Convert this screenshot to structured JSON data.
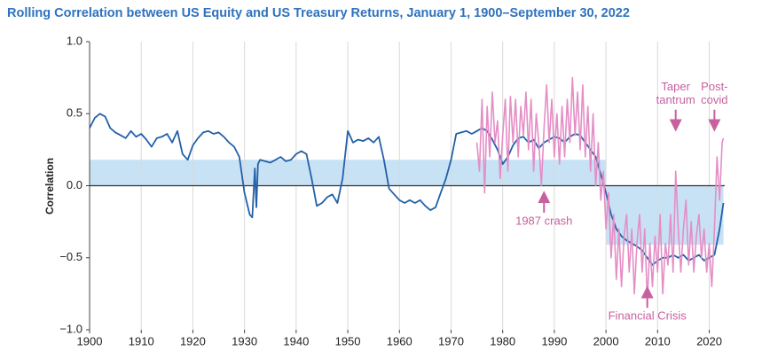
{
  "chart_data": {
    "type": "line",
    "title": "Rolling Correlation between US Equity and US Treasury Returns, January 1, 1900–September 30, 2022",
    "y_label": "Correlation",
    "xlim": [
      1900,
      2023
    ],
    "xticks": [
      1900,
      1910,
      1920,
      1930,
      1940,
      1950,
      1960,
      1970,
      1980,
      1990,
      2000,
      2010,
      2020
    ],
    "ylim": [
      -1,
      1
    ],
    "yticks": [
      {
        "value": -1,
        "label": "−1.0"
      },
      {
        "value": -0.5,
        "label": "−0.5"
      },
      {
        "value": 0,
        "label": "0.0"
      },
      {
        "value": 0.5,
        "label": "0.5"
      },
      {
        "value": 1,
        "label": "1.0"
      }
    ],
    "grid": "x",
    "band_color": "#c8e2f5",
    "bands": [
      {
        "x": [
          1900,
          2000
        ],
        "value": 0.18
      },
      {
        "x": [
          2000,
          2022.75
        ],
        "value": -0.41
      }
    ],
    "series": [
      {
        "color": "#2360a8",
        "x": [
          1900,
          1901,
          1902,
          1903,
          1904,
          1905,
          1906,
          1907,
          1908,
          1909,
          1910,
          1911,
          1912,
          1913,
          1914,
          1915,
          1916,
          1917,
          1918,
          1919,
          1920,
          1921,
          1922,
          1923,
          1924,
          1925,
          1926,
          1927,
          1928,
          1929,
          1930,
          1931,
          1931.5,
          1932,
          1932.3,
          1932.6,
          1933,
          1934,
          1935,
          1936,
          1937,
          1938,
          1939,
          1940,
          1941,
          1942,
          1943,
          1944,
          1945,
          1946,
          1947,
          1948,
          1949,
          1950,
          1951,
          1952,
          1953,
          1954,
          1955,
          1956,
          1957,
          1958,
          1959,
          1960,
          1961,
          1962,
          1963,
          1964,
          1965,
          1966,
          1967,
          1968,
          1969,
          1970,
          1971,
          1972,
          1973,
          1974,
          1975,
          1976,
          1977,
          1978,
          1979,
          1980,
          1981,
          1982,
          1983,
          1984,
          1985,
          1986,
          1987,
          1988,
          1989,
          1990,
          1991,
          1992,
          1993,
          1994,
          1995,
          1996,
          1997,
          1998,
          1999,
          2000,
          2001,
          2002,
          2003,
          2004,
          2005,
          2006,
          2007,
          2008,
          2009,
          2010,
          2011,
          2012,
          2013,
          2014,
          2015,
          2016,
          2017,
          2018,
          2019,
          2020,
          2021,
          2022,
          2022.75
        ],
        "values": [
          0.4,
          0.47,
          0.5,
          0.48,
          0.4,
          0.37,
          0.35,
          0.33,
          0.38,
          0.34,
          0.36,
          0.32,
          0.27,
          0.33,
          0.34,
          0.36,
          0.3,
          0.38,
          0.22,
          0.18,
          0.28,
          0.33,
          0.37,
          0.38,
          0.36,
          0.37,
          0.34,
          0.3,
          0.27,
          0.2,
          -0.05,
          -0.2,
          -0.22,
          0.12,
          -0.15,
          0.15,
          0.18,
          0.17,
          0.16,
          0.18,
          0.2,
          0.17,
          0.18,
          0.22,
          0.24,
          0.22,
          0.05,
          -0.14,
          -0.12,
          -0.08,
          -0.06,
          -0.12,
          0.05,
          0.38,
          0.3,
          0.32,
          0.31,
          0.33,
          0.3,
          0.34,
          0.18,
          -0.02,
          -0.06,
          -0.1,
          -0.12,
          -0.1,
          -0.12,
          -0.1,
          -0.14,
          -0.17,
          -0.15,
          -0.05,
          0.05,
          0.18,
          0.36,
          0.37,
          0.38,
          0.36,
          0.38,
          0.4,
          0.38,
          0.32,
          0.25,
          0.15,
          0.2,
          0.28,
          0.33,
          0.34,
          0.3,
          0.32,
          0.26,
          0.3,
          0.32,
          0.34,
          0.33,
          0.3,
          0.34,
          0.36,
          0.35,
          0.3,
          0.25,
          0.2,
          0.08,
          -0.05,
          -0.2,
          -0.3,
          -0.35,
          -0.38,
          -0.4,
          -0.42,
          -0.45,
          -0.5,
          -0.55,
          -0.52,
          -0.5,
          -0.5,
          -0.48,
          -0.5,
          -0.48,
          -0.52,
          -0.5,
          -0.48,
          -0.52,
          -0.5,
          -0.48,
          -0.3,
          -0.12
        ]
      },
      {
        "color": "#e48ec6",
        "x": [
          1975,
          1975.5,
          1976,
          1976.5,
          1977,
          1977.5,
          1978,
          1978.5,
          1979,
          1979.5,
          1980,
          1980.5,
          1981,
          1981.5,
          1982,
          1982.5,
          1983,
          1983.5,
          1984,
          1984.5,
          1985,
          1985.5,
          1986,
          1986.5,
          1987,
          1987.5,
          1988,
          1988.5,
          1989,
          1989.5,
          1990,
          1990.5,
          1991,
          1991.5,
          1992,
          1992.5,
          1993,
          1993.5,
          1994,
          1994.5,
          1995,
          1995.5,
          1996,
          1996.5,
          1997,
          1997.5,
          1998,
          1998.5,
          1999,
          1999.5,
          2000,
          2000.5,
          2001,
          2001.5,
          2002,
          2002.5,
          2003,
          2003.5,
          2004,
          2004.5,
          2005,
          2005.5,
          2006,
          2006.5,
          2007,
          2007.5,
          2008,
          2008.5,
          2009,
          2009.5,
          2010,
          2010.5,
          2011,
          2011.5,
          2012,
          2012.5,
          2013,
          2013.5,
          2014,
          2014.5,
          2015,
          2015.5,
          2016,
          2016.5,
          2017,
          2017.5,
          2018,
          2018.5,
          2019,
          2019.5,
          2020,
          2020.5,
          2021,
          2021.5,
          2022,
          2022.5,
          2022.75
        ],
        "values": [
          0.3,
          0.1,
          0.6,
          -0.05,
          0.55,
          0.2,
          0.65,
          0.3,
          0.45,
          0.05,
          0.35,
          0.6,
          0.1,
          0.62,
          0.3,
          0.6,
          0.2,
          0.55,
          0.35,
          0.65,
          0.25,
          0.6,
          0.1,
          0.5,
          0.3,
          0.0,
          0.4,
          0.7,
          0.3,
          0.6,
          0.2,
          0.5,
          0.15,
          0.55,
          0.2,
          0.6,
          0.3,
          0.75,
          0.35,
          0.65,
          0.25,
          0.7,
          0.2,
          0.55,
          0.1,
          0.5,
          0.0,
          0.3,
          -0.1,
          0.1,
          -0.3,
          -0.05,
          -0.5,
          -0.2,
          -0.65,
          -0.3,
          -0.7,
          -0.35,
          -0.2,
          -0.6,
          -0.3,
          -0.75,
          -0.4,
          -0.2,
          -0.6,
          -0.3,
          -0.8,
          -0.4,
          -0.7,
          -0.35,
          -0.6,
          -0.2,
          -0.75,
          -0.4,
          -0.55,
          -0.2,
          -0.6,
          0.1,
          -0.3,
          -0.6,
          -0.3,
          -0.1,
          -0.55,
          -0.25,
          -0.6,
          -0.35,
          -0.2,
          -0.5,
          -0.3,
          -0.6,
          -0.4,
          -0.7,
          -0.3,
          0.2,
          -0.1,
          0.3,
          0.33
        ]
      }
    ],
    "annotations": [
      {
        "text": [
          "1987 crash"
        ],
        "x": 1988,
        "y": -0.04,
        "direction": "up"
      },
      {
        "text": [
          "Financial Crisis"
        ],
        "x": 2008,
        "y": -0.7,
        "direction": "up"
      },
      {
        "text": [
          "Taper",
          "tantrum"
        ],
        "x": 2013.5,
        "y": 0.38,
        "direction": "down"
      },
      {
        "text": [
          "Post-",
          "covid"
        ],
        "x": 2021,
        "y": 0.38,
        "direction": "down"
      }
    ],
    "annotation_color": "#c8609f"
  }
}
